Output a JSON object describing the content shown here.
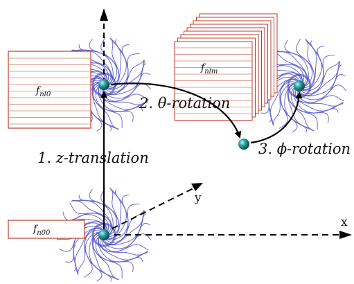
{
  "labels": {
    "step1": "1. z-translation",
    "step2": "2. θ-rotation",
    "step3": "3. ϕ-rotation",
    "axis_x": "x",
    "axis_y": "y"
  },
  "boxes": {
    "f_nl0": {
      "base": "f",
      "sub": "nl0"
    },
    "f_nlm": {
      "base": "f",
      "sub": "nlm"
    },
    "f_n00": {
      "base": "f",
      "sub": "n00"
    }
  },
  "colors": {
    "field_lines": "#6b6bd6",
    "box_stroke": "#c0392b",
    "box_lines": "#d97a6c",
    "sphere": "#1f8f8f",
    "arrow": "#000000"
  }
}
